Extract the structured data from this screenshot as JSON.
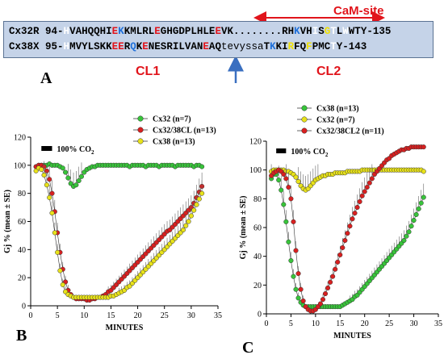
{
  "top": {
    "cam_site_label": "CaM-site",
    "seq1": {
      "name": "Cx32R",
      "start": "94-",
      "residues": "HVAHQQHIEKKMLRLEGHGDPLHLEEVK........RHKVHISGTLWWTY",
      "colors": "wkkkkkkkrbkkkkkrkkkkkkkkkrkkkkkkkkkkkkbkkwkywkwkkk",
      "end": "-135"
    },
    "seq2": {
      "name": "Cx38X",
      "start": "95-",
      "residues": "HMVYLSKKEERQKENESRILVANEAQtevyssaTKKIRFQFPMCTY",
      "colors": "wkkkkkkkrrkbkrkkkkkkkkkrkkkkkkkkkkbkkykkykkkwk",
      "end": "-143"
    },
    "cl1": "CL1",
    "cl2": "CL2",
    "panel_a": "A"
  },
  "colors": {
    "green": "#38c43a",
    "red": "#d82020",
    "yellow": "#e8e21a",
    "highlight_red": "#e1141b",
    "highlight_blue": "#1e6fd9",
    "arrow_blue": "#3a6fc0",
    "seq_box": "#c5d3e8"
  },
  "chart_data": [
    {
      "panel": "B",
      "type": "line",
      "xlabel": "MINUTES",
      "ylabel": "Gj % (mean ± SE)",
      "xlim": [
        0,
        35
      ],
      "ylim": [
        0,
        120
      ],
      "xticks": [
        0,
        5,
        10,
        15,
        20,
        25,
        30,
        35
      ],
      "yticks": [
        0,
        20,
        40,
        60,
        80,
        100,
        120
      ],
      "co2_label": "100% CO",
      "co2_sub": "2",
      "co2_bar": [
        2,
        4
      ],
      "series": [
        {
          "name": "Cx32 (n=7)",
          "color": "green",
          "x": [
            1,
            1.5,
            2,
            2.5,
            3,
            3.5,
            4,
            4.5,
            5,
            5.5,
            6,
            6.5,
            7,
            7.5,
            8,
            8.5,
            9,
            9.5,
            10,
            10.5,
            11,
            11.5,
            12,
            12.5,
            13,
            13.5,
            14,
            14.5,
            15,
            15.5,
            16,
            16.5,
            17,
            17.5,
            18,
            18.5,
            19,
            19.5,
            20,
            20.5,
            21,
            21.5,
            22,
            22.5,
            23,
            23.5,
            24,
            24.5,
            25,
            25.5,
            26,
            26.5,
            27,
            27.5,
            28,
            28.5,
            29,
            29.5,
            30,
            30.5,
            31,
            31.5,
            32
          ],
          "y": [
            99,
            100,
            100,
            100,
            100,
            101,
            100,
            100,
            100,
            99,
            98,
            95,
            91,
            87,
            85,
            86,
            89,
            92,
            95,
            97,
            98,
            99,
            99,
            100,
            100,
            100,
            100,
            100,
            100,
            100,
            100,
            100,
            100,
            100,
            100,
            99,
            100,
            100,
            100,
            100,
            100,
            99,
            100,
            100,
            100,
            100,
            99,
            100,
            100,
            100,
            100,
            100,
            99,
            100,
            100,
            100,
            100,
            100,
            100,
            99,
            100,
            100,
            99
          ]
        },
        {
          "name": "Cx32/38CL (n=13)",
          "color": "red",
          "x": [
            1,
            1.5,
            2,
            2.5,
            3,
            3.5,
            4,
            4.5,
            5,
            5.5,
            6,
            6.5,
            7,
            7.5,
            8,
            8.5,
            9,
            9.5,
            10,
            10.5,
            11,
            11.5,
            12,
            12.5,
            13,
            13.5,
            14,
            14.5,
            15,
            15.5,
            16,
            16.5,
            17,
            17.5,
            18,
            18.5,
            19,
            19.5,
            20,
            20.5,
            21,
            21.5,
            22,
            22.5,
            23,
            23.5,
            24,
            24.5,
            25,
            25.5,
            26,
            26.5,
            27,
            27.5,
            28,
            28.5,
            29,
            29.5,
            30,
            30.5,
            31,
            31.5,
            32
          ],
          "y": [
            99,
            100,
            100,
            99,
            96,
            90,
            80,
            67,
            52,
            38,
            26,
            17,
            11,
            8,
            6,
            5,
            5,
            5,
            5,
            4,
            4,
            5,
            5,
            6,
            6,
            7,
            8,
            10,
            11,
            13,
            15,
            17,
            19,
            21,
            23,
            25,
            27,
            29,
            31,
            33,
            35,
            37,
            39,
            41,
            43,
            45,
            47,
            49,
            51,
            53,
            54,
            56,
            58,
            60,
            62,
            64,
            66,
            68,
            70,
            73,
            77,
            81,
            85
          ]
        },
        {
          "name": "Cx38 (n=13)",
          "color": "yellow",
          "x": [
            1,
            1.5,
            2,
            2.5,
            3,
            3.5,
            4,
            4.5,
            5,
            5.5,
            6,
            6.5,
            7,
            7.5,
            8,
            8.5,
            9,
            9.5,
            10,
            10.5,
            11,
            11.5,
            12,
            12.5,
            13,
            13.5,
            14,
            14.5,
            15,
            15.5,
            16,
            16.5,
            17,
            17.5,
            18,
            18.5,
            19,
            19.5,
            20,
            20.5,
            21,
            21.5,
            22,
            22.5,
            23,
            23.5,
            24,
            24.5,
            25,
            25.5,
            26,
            26.5,
            27,
            27.5,
            28,
            28.5,
            29,
            29.5,
            30,
            30.5,
            31,
            31.5,
            32
          ],
          "y": [
            96,
            98,
            97,
            93,
            86,
            77,
            66,
            52,
            38,
            25,
            15,
            10,
            8,
            7,
            6,
            6,
            6,
            6,
            6,
            6,
            6,
            6,
            6,
            6,
            6,
            6,
            6,
            6,
            7,
            7,
            8,
            9,
            10,
            11,
            13,
            14,
            16,
            18,
            20,
            22,
            24,
            26,
            28,
            30,
            32,
            34,
            36,
            38,
            40,
            42,
            44,
            46,
            48,
            50,
            52,
            54,
            57,
            60,
            64,
            68,
            72,
            76,
            80
          ]
        }
      ]
    },
    {
      "panel": "C",
      "type": "line",
      "xlabel": "MINUTES",
      "ylabel": "Gj % (mean ± SE)",
      "xlim": [
        0,
        35
      ],
      "ylim": [
        0,
        120
      ],
      "xticks": [
        0,
        5,
        10,
        15,
        20,
        25,
        30,
        35
      ],
      "yticks": [
        0,
        20,
        40,
        60,
        80,
        100,
        120
      ],
      "co2_label": "100% CO",
      "co2_sub": "2",
      "co2_bar": [
        2,
        4
      ],
      "series": [
        {
          "name": "Cx38 (n=13)",
          "color": "green",
          "x": [
            1,
            1.5,
            2,
            2.5,
            3,
            3.5,
            4,
            4.5,
            5,
            5.5,
            6,
            6.5,
            7,
            7.5,
            8,
            8.5,
            9,
            9.5,
            10,
            10.5,
            11,
            11.5,
            12,
            12.5,
            13,
            13.5,
            14,
            14.5,
            15,
            15.5,
            16,
            16.5,
            17,
            17.5,
            18,
            18.5,
            19,
            19.5,
            20,
            20.5,
            21,
            21.5,
            22,
            22.5,
            23,
            23.5,
            24,
            24.5,
            25,
            25.5,
            26,
            26.5,
            27,
            27.5,
            28,
            28.5,
            29,
            29.5,
            30,
            30.5,
            31,
            31.5,
            32
          ],
          "y": [
            94,
            97,
            97,
            93,
            86,
            76,
            64,
            50,
            37,
            26,
            17,
            11,
            8,
            6,
            5,
            5,
            5,
            5,
            5,
            5,
            5,
            5,
            5,
            5,
            5,
            5,
            5,
            5,
            5,
            6,
            7,
            8,
            9,
            10,
            12,
            13,
            15,
            17,
            19,
            21,
            23,
            25,
            27,
            29,
            31,
            33,
            35,
            37,
            39,
            41,
            43,
            45,
            47,
            49,
            51,
            54,
            57,
            61,
            65,
            69,
            73,
            77,
            81
          ]
        },
        {
          "name": "Cx32 (n=7)",
          "color": "yellow",
          "x": [
            1,
            1.5,
            2,
            2.5,
            3,
            3.5,
            4,
            4.5,
            5,
            5.5,
            6,
            6.5,
            7,
            7.5,
            8,
            8.5,
            9,
            9.5,
            10,
            10.5,
            11,
            11.5,
            12,
            12.5,
            13,
            13.5,
            14,
            14.5,
            15,
            15.5,
            16,
            16.5,
            17,
            17.5,
            18,
            18.5,
            19,
            19.5,
            20,
            20.5,
            21,
            21.5,
            22,
            22.5,
            23,
            23.5,
            24,
            24.5,
            25,
            25.5,
            26,
            26.5,
            27,
            27.5,
            28,
            28.5,
            29,
            29.5,
            30,
            30.5,
            31,
            31.5,
            32
          ],
          "y": [
            99,
            100,
            100,
            100,
            100,
            100,
            99,
            99,
            98,
            97,
            95,
            92,
            89,
            87,
            86,
            87,
            89,
            91,
            93,
            94,
            95,
            96,
            96,
            97,
            97,
            97,
            98,
            98,
            98,
            98,
            98,
            99,
            99,
            99,
            99,
            99,
            99,
            100,
            100,
            100,
            100,
            100,
            100,
            100,
            100,
            100,
            100,
            100,
            100,
            100,
            100,
            100,
            100,
            100,
            100,
            100,
            100,
            100,
            100,
            100,
            100,
            100,
            99
          ]
        },
        {
          "name": "Cx32/38CL2 (n=11)",
          "color": "red",
          "x": [
            1,
            1.5,
            2,
            2.5,
            3,
            3.5,
            4,
            4.5,
            5,
            5.5,
            6,
            6.5,
            7,
            7.5,
            8,
            8.5,
            9,
            9.5,
            10,
            10.5,
            11,
            11.5,
            12,
            12.5,
            13,
            13.5,
            14,
            14.5,
            15,
            15.5,
            16,
            16.5,
            17,
            17.5,
            18,
            18.5,
            19,
            19.5,
            20,
            20.5,
            21,
            21.5,
            22,
            22.5,
            23,
            23.5,
            24,
            24.5,
            25,
            25.5,
            26,
            26.5,
            27,
            27.5,
            28,
            28.5,
            29,
            29.5,
            30,
            30.5,
            31,
            31.5,
            32
          ],
          "y": [
            96,
            98,
            99,
            100,
            99,
            97,
            94,
            88,
            80,
            64,
            44,
            28,
            17,
            9,
            5,
            3,
            2,
            2,
            3,
            5,
            7,
            10,
            14,
            18,
            22,
            26,
            31,
            36,
            41,
            46,
            51,
            56,
            61,
            66,
            70,
            74,
            78,
            82,
            85,
            88,
            91,
            94,
            97,
            99,
            101,
            103,
            105,
            107,
            108,
            110,
            111,
            112,
            113,
            114,
            114,
            115,
            115,
            116,
            116,
            116,
            116,
            116,
            116
          ]
        }
      ]
    }
  ]
}
